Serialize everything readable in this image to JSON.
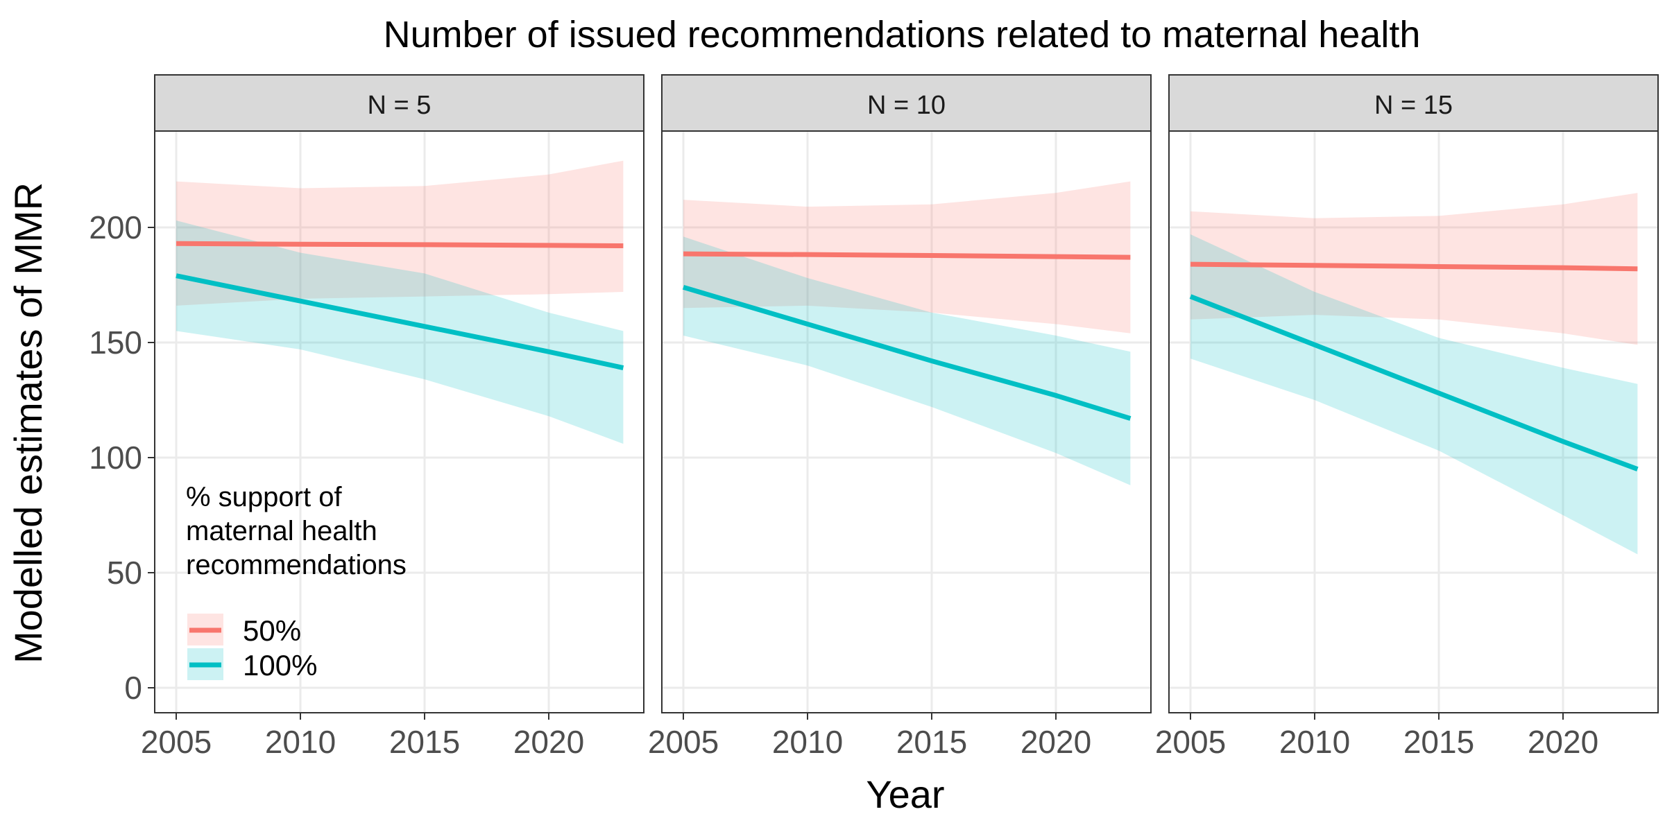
{
  "chart_data": {
    "type": "line",
    "title": "Number of issued recommendations related to maternal health",
    "xlabel": "Year",
    "ylabel": "Modelled estimates of MMR",
    "xlim": [
      2004.1,
      2023.9
    ],
    "ylim": [
      -10,
      240
    ],
    "x_ticks": [
      2005,
      2010,
      2015,
      2020
    ],
    "y_ticks": [
      0,
      50,
      100,
      150,
      200
    ],
    "grid": true,
    "legend": {
      "title": [
        "% support of",
        "maternal health",
        "recommendations"
      ],
      "placement": "inside-bottom-left",
      "entries": [
        "50%",
        "100%"
      ]
    },
    "colors": {
      "50%": "#F8766D",
      "100%": "#00BFC4"
    },
    "x": [
      2005,
      2010,
      2015,
      2020,
      2023
    ],
    "panels": [
      {
        "label": "N = 5",
        "series": [
          {
            "name": "50%",
            "fit": [
              193,
              192.7,
              192.5,
              192.2,
              192
            ],
            "lower": [
              166,
              169,
              170,
              171,
              172
            ],
            "upper": [
              220,
              217,
              218,
              223,
              229
            ]
          },
          {
            "name": "100%",
            "fit": [
              179,
              168,
              157,
              146,
              139
            ],
            "lower": [
              155,
              147,
              134,
              118,
              106
            ],
            "upper": [
              203,
              189,
              180,
              163,
              155
            ]
          }
        ]
      },
      {
        "label": "N = 10",
        "series": [
          {
            "name": "50%",
            "fit": [
              188.5,
              188.2,
              187.8,
              187.3,
              187
            ],
            "lower": [
              165,
              166,
              163,
              158,
              154
            ],
            "upper": [
              212,
              209,
              210,
              215,
              220
            ]
          },
          {
            "name": "100%",
            "fit": [
              174,
              158,
              142,
              127,
              117
            ],
            "lower": [
              153,
              140,
              122,
              102,
              88
            ],
            "upper": [
              196,
              178,
              163,
              153,
              146
            ]
          }
        ]
      },
      {
        "label": "N = 15",
        "series": [
          {
            "name": "50%",
            "fit": [
              184,
              183.5,
              183,
              182.5,
              182
            ],
            "lower": [
              160,
              162,
              160,
              154,
              149
            ],
            "upper": [
              207,
              204,
              205,
              210,
              215
            ]
          },
          {
            "name": "100%",
            "fit": [
              170,
              149,
              128,
              107,
              95
            ],
            "lower": [
              143,
              125,
              103,
              75,
              58
            ],
            "upper": [
              197,
              172,
              152,
              139,
              132
            ]
          }
        ]
      }
    ]
  }
}
